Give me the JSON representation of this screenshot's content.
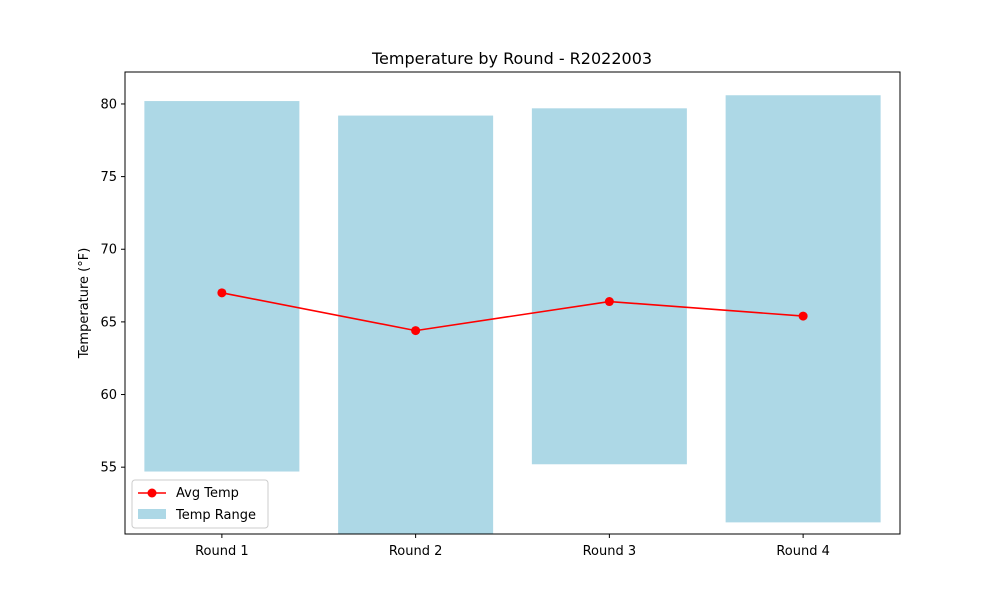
{
  "chart_data": {
    "type": "bar",
    "title": "Temperature by Round - R2022003",
    "xlabel": "",
    "ylabel": "Temperature (°F)",
    "categories": [
      "Round 1",
      "Round 2",
      "Round 3",
      "Round 4"
    ],
    "ylim": [
      50.4,
      82.2
    ],
    "yticks": [
      55,
      60,
      65,
      70,
      75,
      80
    ],
    "series": [
      {
        "name": "Temp Range",
        "kind": "floating-bar",
        "color": "#add8e6",
        "low": [
          54.7,
          50.3,
          55.2,
          51.2
        ],
        "high": [
          80.2,
          79.2,
          79.7,
          80.6
        ]
      },
      {
        "name": "Avg Temp",
        "kind": "line",
        "color": "#ff0000",
        "values": [
          67.0,
          64.4,
          66.4,
          65.4
        ]
      }
    ],
    "grid": false,
    "legend": "lower-left"
  }
}
